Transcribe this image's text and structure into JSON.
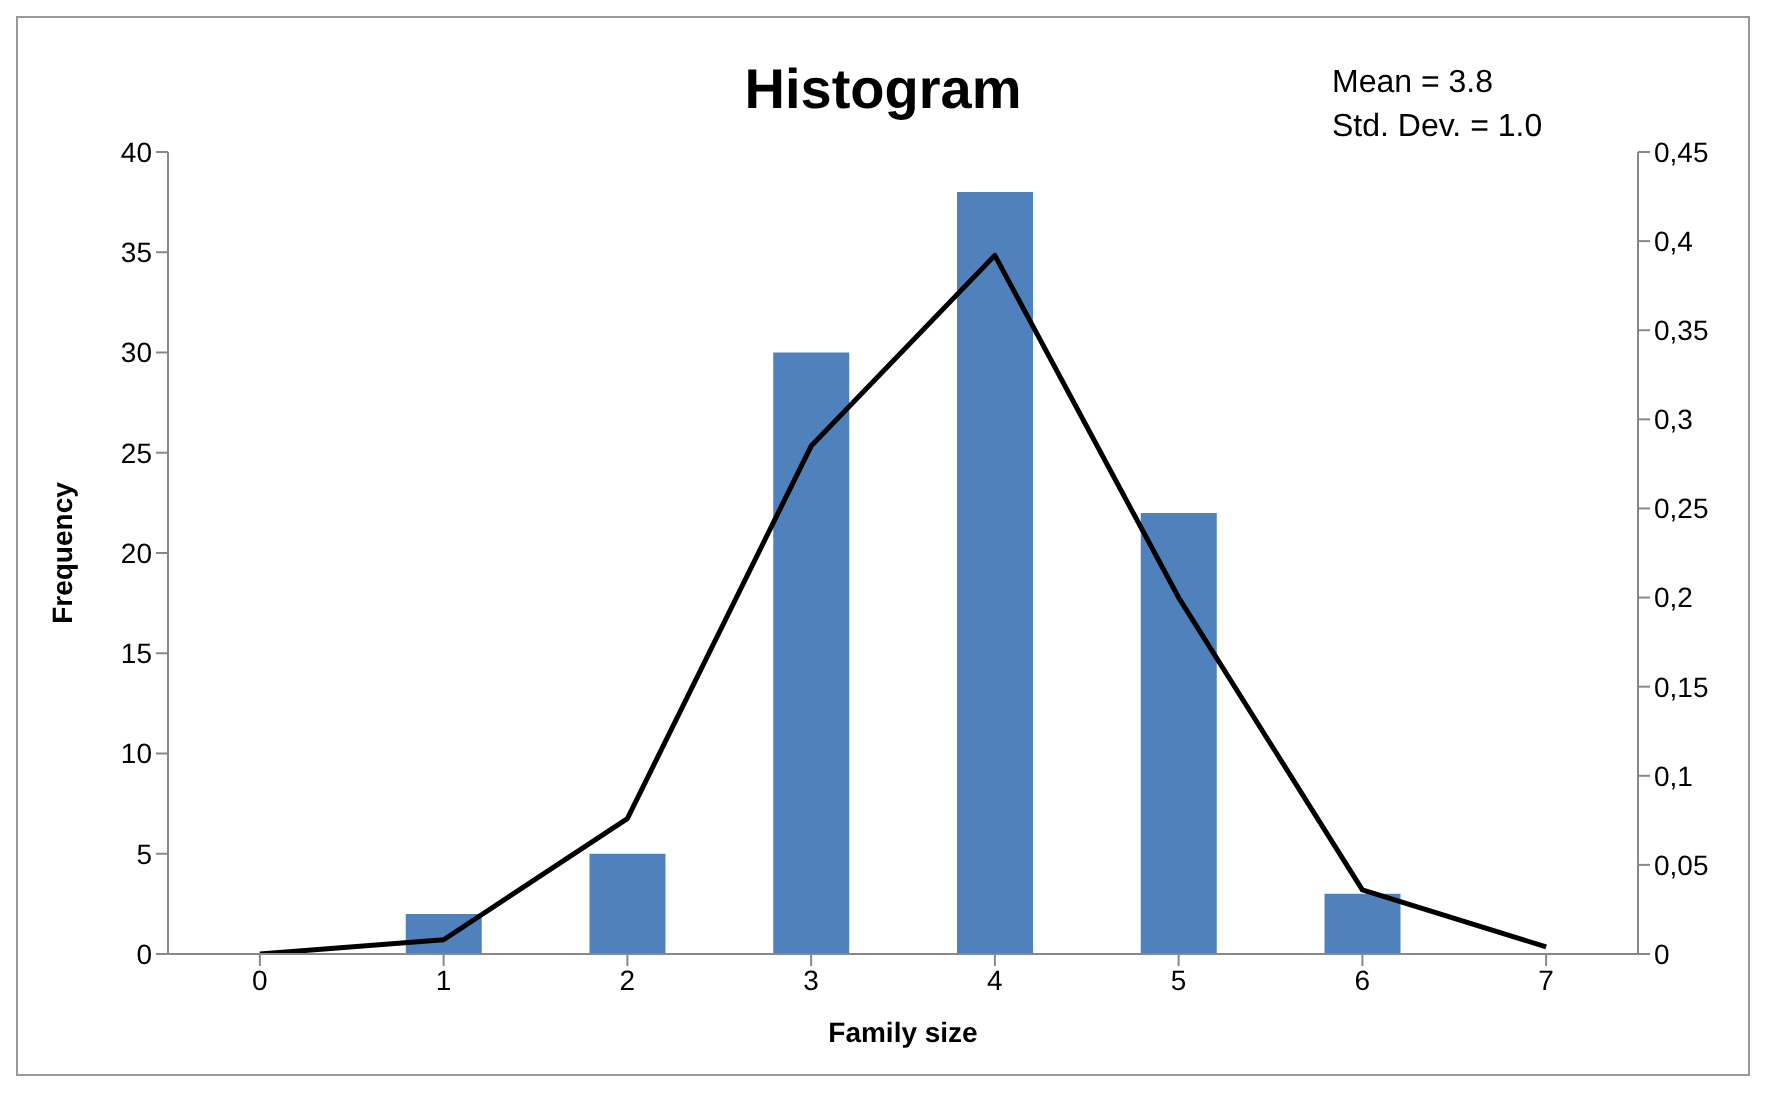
{
  "chart_data": {
    "type": "bar",
    "title": "Histogram",
    "xlabel": "Family size",
    "ylabel": "Frequency",
    "categories": [
      "0",
      "1",
      "2",
      "3",
      "4",
      "5",
      "6",
      "7"
    ],
    "series": [
      {
        "color": "#4f81bd",
        "values": [
          0,
          2,
          5,
          30,
          38,
          22,
          3,
          0
        ]
      },
      {
        "type": "line",
        "axis": "y2",
        "color": "#000000",
        "values": [
          0,
          0.008,
          0.076,
          0.285,
          0.392,
          0.2,
          0.036,
          0.004
        ]
      }
    ],
    "ylim": [
      0,
      40
    ],
    "yticks": [
      0,
      5,
      10,
      15,
      20,
      25,
      30,
      35,
      40
    ],
    "y2lim": [
      0,
      0.45
    ],
    "y2ticks": [
      {
        "value": 0,
        "label": "0"
      },
      {
        "value": 0.05,
        "label": "0,05"
      },
      {
        "value": 0.1,
        "label": "0,1"
      },
      {
        "value": 0.15,
        "label": "0,15"
      },
      {
        "value": 0.2,
        "label": "0,2"
      },
      {
        "value": 0.25,
        "label": "0,25"
      },
      {
        "value": 0.3,
        "label": "0,3"
      },
      {
        "value": 0.35,
        "label": "0,35"
      },
      {
        "value": 0.4,
        "label": "0,4"
      },
      {
        "value": 0.45,
        "label": "0,45"
      }
    ],
    "annotations": [
      "Mean = 3.8",
      "Std. Dev. = 1.0"
    ],
    "grid": false,
    "legend": false,
    "marker": "none",
    "line_style": "solid"
  }
}
